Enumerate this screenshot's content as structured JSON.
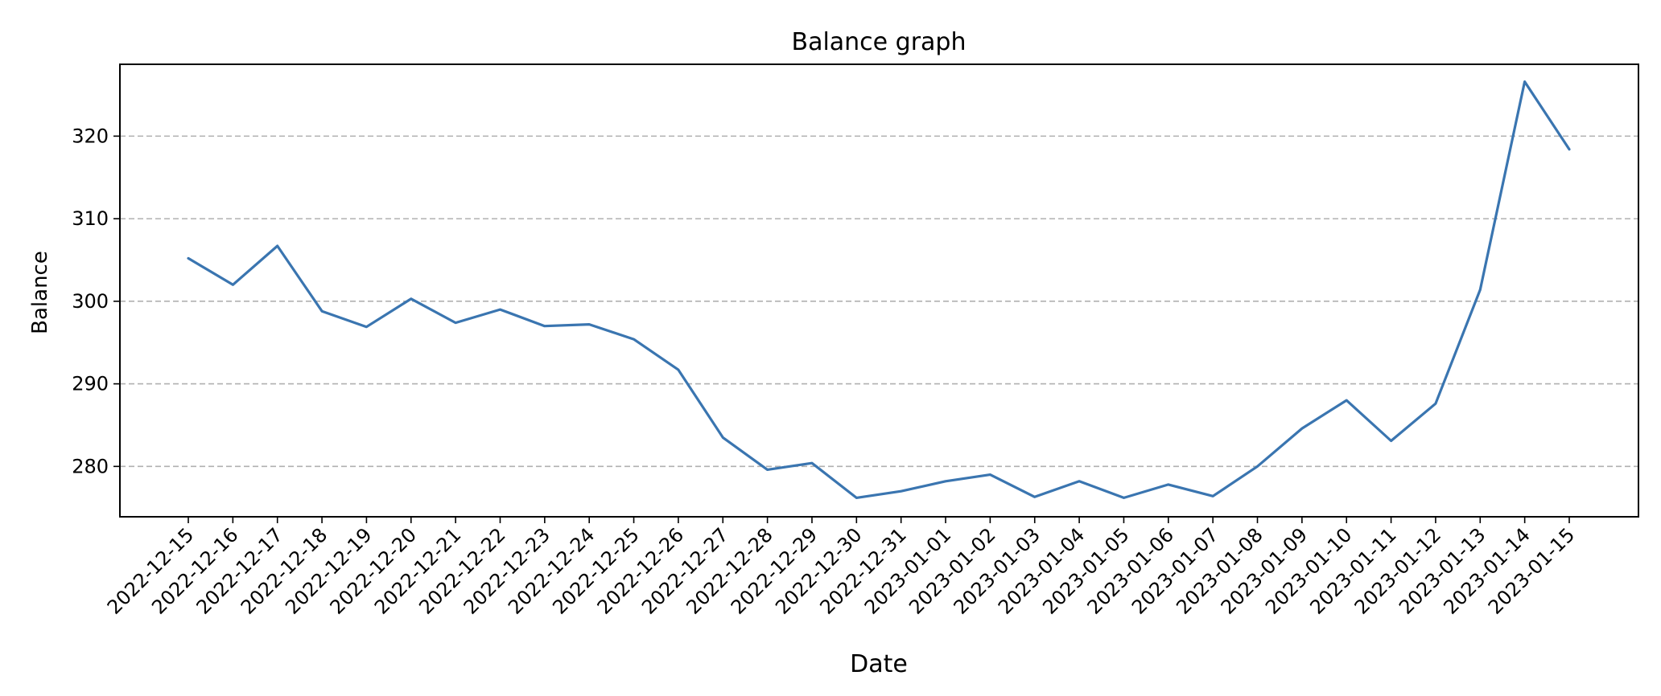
{
  "chart_data": {
    "type": "line",
    "title": "Balance graph",
    "xlabel": "Date",
    "ylabel": "Balance",
    "ylim": [
      273.9,
      328.7
    ],
    "yticks": [
      280,
      290,
      300,
      310,
      320
    ],
    "grid": "y-dashed",
    "line_color": "#3a75b0",
    "x": [
      "2022-12-15",
      "2022-12-16",
      "2022-12-17",
      "2022-12-18",
      "2022-12-19",
      "2022-12-20",
      "2022-12-21",
      "2022-12-22",
      "2022-12-23",
      "2022-12-24",
      "2022-12-25",
      "2022-12-26",
      "2022-12-27",
      "2022-12-28",
      "2022-12-29",
      "2022-12-30",
      "2022-12-31",
      "2023-01-01",
      "2023-01-02",
      "2023-01-03",
      "2023-01-04",
      "2023-01-05",
      "2023-01-06",
      "2023-01-07",
      "2023-01-08",
      "2023-01-09",
      "2023-01-10",
      "2023-01-11",
      "2023-01-12",
      "2023-01-13",
      "2023-01-14",
      "2023-01-15"
    ],
    "series": [
      {
        "values": [
          305.2,
          302.0,
          306.7,
          298.8,
          296.9,
          300.3,
          297.4,
          299.0,
          297.0,
          297.2,
          295.4,
          291.7,
          283.5,
          279.6,
          280.4,
          276.2,
          277.0,
          278.2,
          279.0,
          276.3,
          278.2,
          276.2,
          277.8,
          276.4,
          280.0,
          284.6,
          288.0,
          283.1,
          287.6,
          301.4,
          326.6,
          318.4
        ]
      }
    ]
  }
}
